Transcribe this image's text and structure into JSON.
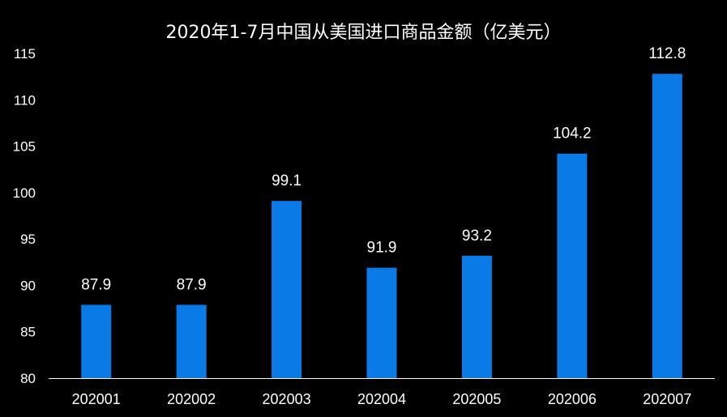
{
  "chart_data": {
    "type": "bar",
    "title": "2020年1-7月中国从美国进口商品金额（亿美元）",
    "categories": [
      "202001",
      "202002",
      "202003",
      "202004",
      "202005",
      "202006",
      "202007"
    ],
    "values": [
      87.9,
      87.9,
      99.1,
      91.9,
      93.2,
      104.2,
      112.8
    ],
    "value_labels": [
      "87.9",
      "87.9",
      "99.1",
      "91.9",
      "93.2",
      "104.2",
      "112.8"
    ],
    "xlabel": "",
    "ylabel": "",
    "ylim": [
      80,
      115
    ],
    "yticks": [
      80,
      85,
      90,
      95,
      100,
      105,
      110,
      115
    ],
    "grid": false,
    "legend": "none",
    "colors": {
      "background": "#000000",
      "bar": "#0a7be6",
      "text": "#ffffff",
      "axis": "#ffffff"
    }
  }
}
